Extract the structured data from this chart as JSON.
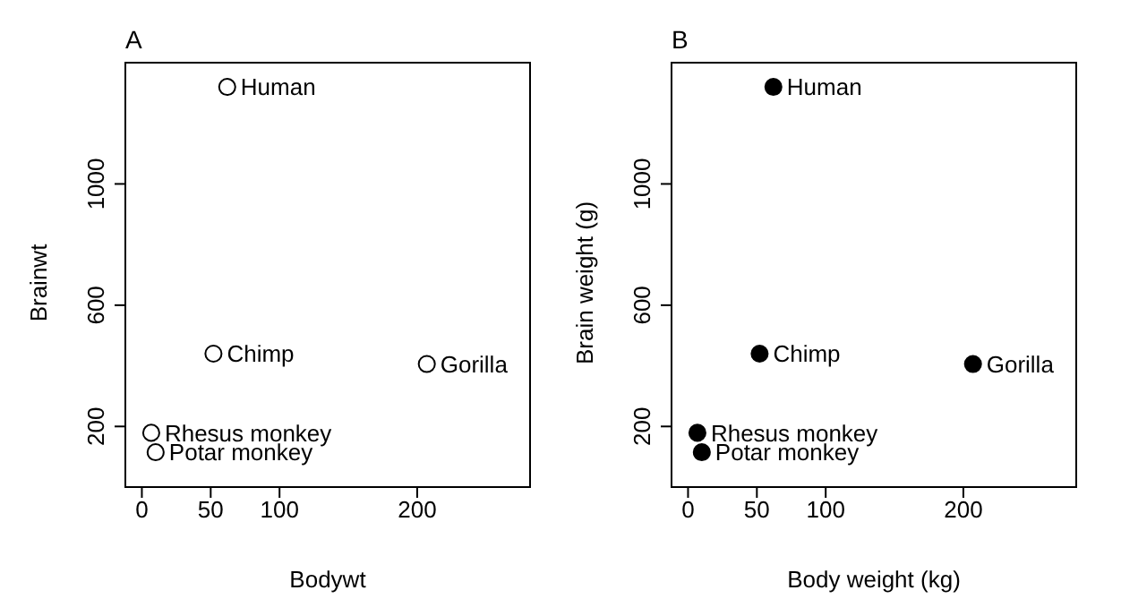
{
  "chart_data": [
    {
      "type": "scatter",
      "title": "A",
      "xlabel": "Bodywt",
      "ylabel": "Brainwt",
      "x": [
        62,
        52,
        207,
        6.8,
        10
      ],
      "values": [
        1320,
        440,
        406,
        179,
        115
      ],
      "color": "#000000",
      "marker": "circle",
      "xlim": [
        -12,
        282
      ],
      "ylim": [
        0,
        1400
      ],
      "xticks": [
        0,
        50,
        100,
        200
      ],
      "yticks": [
        200,
        600,
        1000
      ],
      "grid": false,
      "annotations": [
        {
          "text": "Human",
          "x": 62,
          "y": 1320
        },
        {
          "text": "Chimp",
          "x": 52,
          "y": 440
        },
        {
          "text": "Gorilla",
          "x": 207,
          "y": 406
        },
        {
          "text": "Rhesus monkey",
          "x": 6.8,
          "y": 179
        },
        {
          "text": "Potar monkey",
          "x": 10,
          "y": 115
        }
      ]
    },
    {
      "type": "scatter",
      "title": "B",
      "xlabel": "Body weight (kg)",
      "ylabel": "Brain weight (g)",
      "x": [
        62,
        52,
        207,
        6.8,
        10
      ],
      "values": [
        1320,
        440,
        406,
        179,
        115
      ],
      "color": "#000000",
      "marker": "circle",
      "xlim": [
        -12,
        282
      ],
      "ylim": [
        0,
        1400
      ],
      "xticks": [
        0,
        50,
        100,
        200
      ],
      "yticks": [
        200,
        600,
        1000
      ],
      "grid": false,
      "annotations": [
        {
          "text": "Human",
          "x": 62,
          "y": 1320
        },
        {
          "text": "Chimp",
          "x": 52,
          "y": 440
        },
        {
          "text": "Gorilla",
          "x": 207,
          "y": 406
        },
        {
          "text": "Rhesus monkey",
          "x": 6.8,
          "y": 179
        },
        {
          "text": "Potar monkey",
          "x": 10,
          "y": 115
        }
      ]
    }
  ]
}
